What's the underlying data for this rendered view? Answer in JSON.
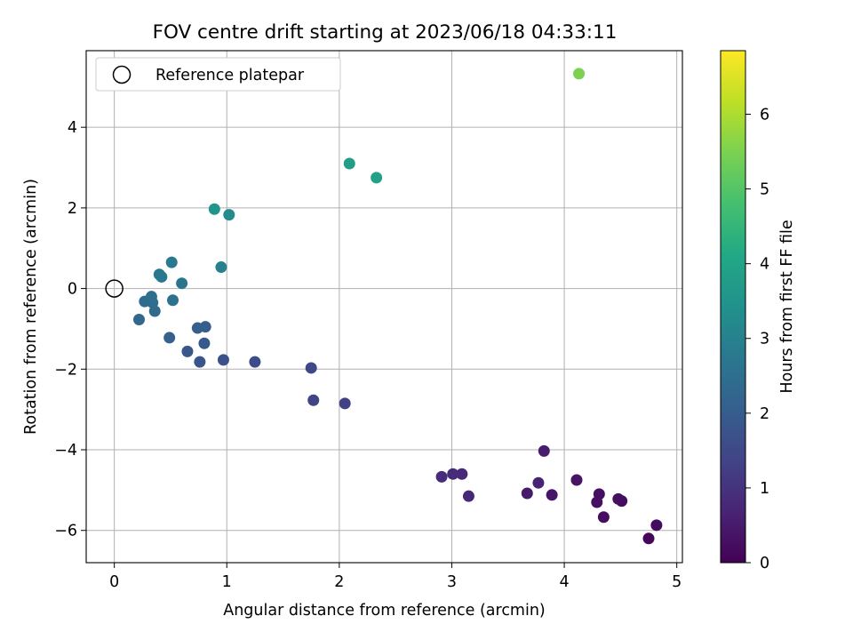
{
  "chart_data": {
    "type": "scatter",
    "title": "FOV centre drift starting at 2023/06/18 04:33:11",
    "xlabel": "Angular distance from reference (arcmin)",
    "ylabel": "Rotation from reference (arcmin)",
    "xlim": [
      -0.25,
      5.05
    ],
    "ylim": [
      -6.8,
      5.9
    ],
    "xticks": [
      0,
      1,
      2,
      3,
      4,
      5
    ],
    "yticks": [
      -6,
      -4,
      -2,
      0,
      2,
      4
    ],
    "grid": true,
    "legend": {
      "placement": "top-left",
      "entries": [
        "Reference platepar"
      ]
    },
    "reference_point": {
      "label": "Reference platepar",
      "x": 0,
      "y": 0
    },
    "colorbar": {
      "label": "Hours from first FF file",
      "colormap": "viridis",
      "range": [
        0,
        6.85
      ],
      "ticks": [
        0,
        1,
        2,
        3,
        4,
        5,
        6
      ]
    },
    "points": [
      {
        "x": 4.75,
        "y": -6.2,
        "c": 0.1
      },
      {
        "x": 4.82,
        "y": -5.87,
        "c": 0.2
      },
      {
        "x": 4.51,
        "y": -5.27,
        "c": 0.2
      },
      {
        "x": 4.48,
        "y": -5.22,
        "c": 0.25
      },
      {
        "x": 4.35,
        "y": -5.67,
        "c": 0.25
      },
      {
        "x": 4.29,
        "y": -5.3,
        "c": 0.3
      },
      {
        "x": 4.31,
        "y": -5.1,
        "c": 0.3
      },
      {
        "x": 4.11,
        "y": -4.75,
        "c": 0.35
      },
      {
        "x": 3.89,
        "y": -5.12,
        "c": 0.4
      },
      {
        "x": 3.67,
        "y": -5.08,
        "c": 0.5
      },
      {
        "x": 3.82,
        "y": -4.03,
        "c": 0.55
      },
      {
        "x": 3.77,
        "y": -4.82,
        "c": 0.65
      },
      {
        "x": 3.15,
        "y": -5.15,
        "c": 0.75
      },
      {
        "x": 3.09,
        "y": -4.6,
        "c": 0.8
      },
      {
        "x": 3.01,
        "y": -4.6,
        "c": 0.85
      },
      {
        "x": 2.91,
        "y": -4.67,
        "c": 0.9
      },
      {
        "x": 2.05,
        "y": -2.85,
        "c": 1.3
      },
      {
        "x": 1.77,
        "y": -2.77,
        "c": 1.4
      },
      {
        "x": 1.75,
        "y": -1.97,
        "c": 1.5
      },
      {
        "x": 1.25,
        "y": -1.82,
        "c": 1.6
      },
      {
        "x": 0.97,
        "y": -1.77,
        "c": 1.7
      },
      {
        "x": 0.76,
        "y": -1.82,
        "c": 1.8
      },
      {
        "x": 0.65,
        "y": -1.56,
        "c": 1.85
      },
      {
        "x": 0.8,
        "y": -1.36,
        "c": 1.9
      },
      {
        "x": 0.81,
        "y": -0.95,
        "c": 2.0
      },
      {
        "x": 0.74,
        "y": -0.98,
        "c": 2.05
      },
      {
        "x": 0.49,
        "y": -1.22,
        "c": 2.1
      },
      {
        "x": 0.22,
        "y": -0.77,
        "c": 2.3
      },
      {
        "x": 0.36,
        "y": -0.56,
        "c": 2.35
      },
      {
        "x": 0.27,
        "y": -0.32,
        "c": 2.4
      },
      {
        "x": 0.34,
        "y": -0.35,
        "c": 2.45
      },
      {
        "x": 0.33,
        "y": -0.2,
        "c": 2.5
      },
      {
        "x": 0.52,
        "y": -0.29,
        "c": 2.55
      },
      {
        "x": 0.6,
        "y": 0.13,
        "c": 2.6
      },
      {
        "x": 0.42,
        "y": 0.29,
        "c": 2.7
      },
      {
        "x": 0.4,
        "y": 0.35,
        "c": 2.75
      },
      {
        "x": 0.51,
        "y": 0.65,
        "c": 2.8
      },
      {
        "x": 0.95,
        "y": 0.53,
        "c": 3.0
      },
      {
        "x": 1.02,
        "y": 1.83,
        "c": 3.25
      },
      {
        "x": 0.89,
        "y": 1.97,
        "c": 3.55
      },
      {
        "x": 2.09,
        "y": 3.1,
        "c": 3.8
      },
      {
        "x": 2.33,
        "y": 2.75,
        "c": 3.9
      },
      {
        "x": 4.13,
        "y": 5.33,
        "c": 5.5
      }
    ]
  }
}
